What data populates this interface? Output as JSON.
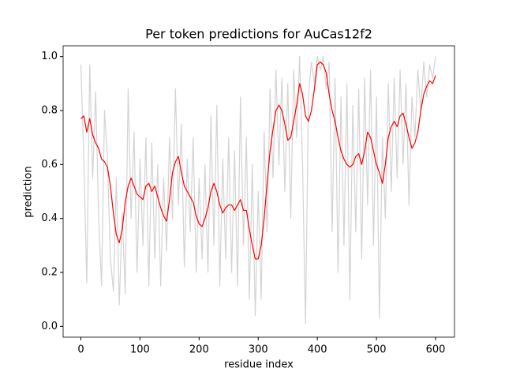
{
  "chart_data": {
    "type": "line",
    "title": "Per token predictions for AuCas12f2",
    "xlabel": "residue index",
    "ylabel": "prediction",
    "x": [
      0,
      5,
      10,
      15,
      20,
      25,
      30,
      35,
      40,
      45,
      50,
      55,
      60,
      65,
      70,
      75,
      80,
      85,
      90,
      95,
      100,
      105,
      110,
      115,
      120,
      125,
      130,
      135,
      140,
      145,
      150,
      155,
      160,
      165,
      170,
      175,
      180,
      185,
      190,
      195,
      200,
      205,
      210,
      215,
      220,
      225,
      230,
      235,
      240,
      245,
      250,
      255,
      260,
      265,
      270,
      275,
      280,
      285,
      290,
      295,
      300,
      305,
      310,
      315,
      320,
      325,
      330,
      335,
      340,
      345,
      350,
      355,
      360,
      365,
      370,
      375,
      380,
      385,
      390,
      395,
      400,
      405,
      410,
      415,
      420,
      425,
      430,
      435,
      440,
      445,
      450,
      455,
      460,
      465,
      470,
      475,
      480,
      485,
      490,
      495,
      500,
      505,
      510,
      515,
      520,
      525,
      530,
      535,
      540,
      545,
      550,
      555,
      560,
      565,
      570,
      575,
      580,
      585,
      590,
      595,
      600
    ],
    "series": [
      {
        "color": "#d3d3d3",
        "values": [
          0.97,
          0.62,
          0.16,
          0.97,
          0.55,
          0.87,
          0.41,
          0.15,
          0.8,
          0.62,
          0.25,
          0.13,
          0.55,
          0.08,
          0.42,
          0.12,
          0.88,
          0.4,
          0.72,
          0.2,
          0.62,
          0.3,
          0.7,
          0.15,
          0.68,
          0.25,
          0.6,
          0.15,
          0.55,
          0.28,
          0.7,
          0.4,
          0.88,
          0.45,
          0.75,
          0.22,
          0.62,
          0.35,
          0.7,
          0.2,
          0.55,
          0.25,
          0.6,
          0.2,
          0.78,
          0.3,
          0.82,
          0.15,
          0.62,
          0.25,
          0.7,
          0.2,
          0.65,
          0.15,
          0.85,
          0.3,
          0.7,
          0.1,
          0.6,
          0.04,
          0.5,
          0.1,
          0.72,
          0.35,
          0.88,
          0.55,
          0.95,
          0.6,
          0.92,
          0.5,
          0.9,
          0.4,
          0.95,
          0.7,
          1.0,
          0.6,
          0.01,
          0.85,
          0.98,
          0.9,
          1.0,
          0.95,
          1.0,
          0.88,
          0.98,
          0.35,
          0.92,
          0.2,
          0.85,
          0.3,
          0.9,
          0.1,
          0.82,
          0.35,
          0.88,
          0.25,
          0.92,
          0.45,
          0.95,
          0.3,
          0.85,
          0.03,
          0.7,
          0.4,
          0.9,
          0.5,
          0.92,
          0.55,
          0.95,
          0.6,
          0.9,
          0.45,
          0.85,
          0.7,
          0.95,
          0.8,
          0.98,
          0.85,
          0.97,
          0.92,
          1.0
        ]
      },
      {
        "color": "#ff0000",
        "values": [
          0.77,
          0.78,
          0.72,
          0.77,
          0.71,
          0.68,
          0.66,
          0.62,
          0.61,
          0.59,
          0.52,
          0.42,
          0.34,
          0.31,
          0.36,
          0.46,
          0.52,
          0.55,
          0.52,
          0.49,
          0.48,
          0.47,
          0.52,
          0.53,
          0.5,
          0.52,
          0.48,
          0.44,
          0.41,
          0.39,
          0.47,
          0.57,
          0.61,
          0.63,
          0.57,
          0.52,
          0.5,
          0.48,
          0.46,
          0.41,
          0.38,
          0.37,
          0.4,
          0.44,
          0.5,
          0.53,
          0.5,
          0.45,
          0.42,
          0.44,
          0.45,
          0.45,
          0.43,
          0.45,
          0.47,
          0.43,
          0.43,
          0.36,
          0.3,
          0.25,
          0.25,
          0.3,
          0.4,
          0.53,
          0.65,
          0.73,
          0.8,
          0.82,
          0.8,
          0.75,
          0.69,
          0.7,
          0.76,
          0.82,
          0.9,
          0.86,
          0.78,
          0.76,
          0.8,
          0.88,
          0.97,
          0.98,
          0.97,
          0.94,
          0.86,
          0.8,
          0.76,
          0.7,
          0.65,
          0.62,
          0.6,
          0.59,
          0.6,
          0.63,
          0.64,
          0.6,
          0.65,
          0.72,
          0.7,
          0.65,
          0.6,
          0.57,
          0.53,
          0.6,
          0.7,
          0.74,
          0.76,
          0.74,
          0.78,
          0.79,
          0.75,
          0.7,
          0.66,
          0.68,
          0.72,
          0.8,
          0.86,
          0.89,
          0.91,
          0.9,
          0.93
        ]
      }
    ],
    "xlim": [
      -30,
      632
    ],
    "ylim": [
      -0.04,
      1.04
    ],
    "xticks": [
      0,
      100,
      200,
      300,
      400,
      500,
      600
    ],
    "yticks": [
      {
        "value": 0,
        "label": "0.0"
      },
      0.2,
      0.4,
      0.6,
      0.8,
      {
        "value": 1,
        "label": "1.0"
      }
    ]
  }
}
